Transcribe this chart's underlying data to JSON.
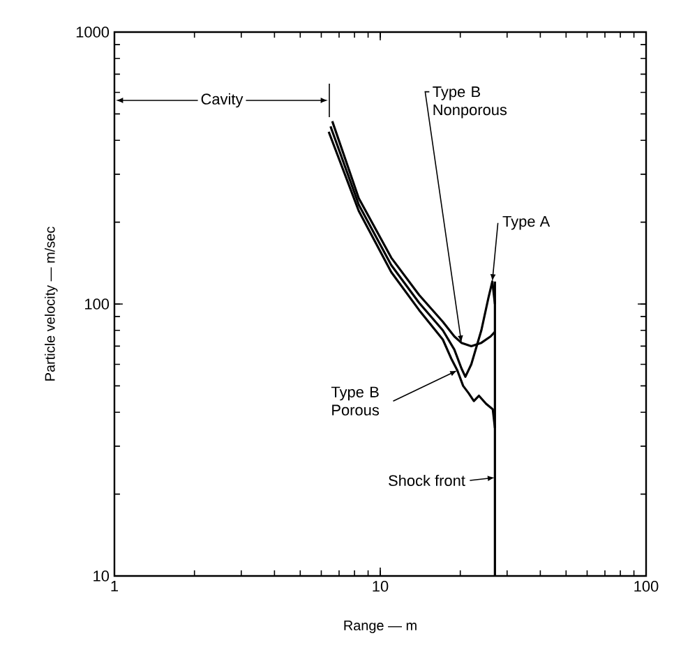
{
  "chart_data": {
    "type": "line",
    "log": "xy",
    "xlabel": "Range — m",
    "ylabel": "Particle velocity — m/sec",
    "xlim": [
      1,
      100
    ],
    "ylim": [
      10,
      1000
    ],
    "xticks": [
      1,
      10,
      100
    ],
    "yticks": [
      10,
      100,
      1000
    ],
    "series": [
      {
        "color": "#000000",
        "x": [
          6.6,
          8.3,
          11,
          14,
          17.2,
          19,
          20.2,
          22,
          24,
          26,
          27
        ],
        "values": [
          470,
          245,
          148,
          108,
          86,
          76,
          72,
          70,
          72,
          76,
          79
        ]
      },
      {
        "color": "#000000",
        "x": [
          6.5,
          8.3,
          11,
          14,
          17.2,
          19,
          20.2,
          20.9,
          22,
          24,
          25.5,
          26.4,
          27
        ],
        "values": [
          450,
          232,
          139,
          101,
          80,
          68,
          58,
          54,
          60,
          80,
          105,
          121,
          100
        ]
      },
      {
        "color": "#000000",
        "x": [
          6.4,
          8.3,
          11,
          14,
          17.2,
          18.5,
          19.5,
          20.5,
          21.5,
          22.5,
          23.5,
          25,
          26.5,
          27
        ],
        "values": [
          430,
          220,
          131,
          95,
          74,
          63,
          57,
          50,
          47,
          44,
          46,
          43,
          41,
          35
        ]
      },
      {
        "color": "#000000",
        "x": [
          27,
          27
        ],
        "values": [
          10,
          121
        ]
      }
    ],
    "annotations": [
      "Cavity",
      {
        "text": "Type B Nonporous",
        "x": 20.2,
        "y": 72
      },
      {
        "text": "Type A",
        "x": 26.4,
        "y": 121
      },
      {
        "text": "Type B Porous",
        "x": 19.5,
        "y": 57
      },
      {
        "text": "Shock front",
        "x": 27,
        "y": 23
      }
    ]
  }
}
